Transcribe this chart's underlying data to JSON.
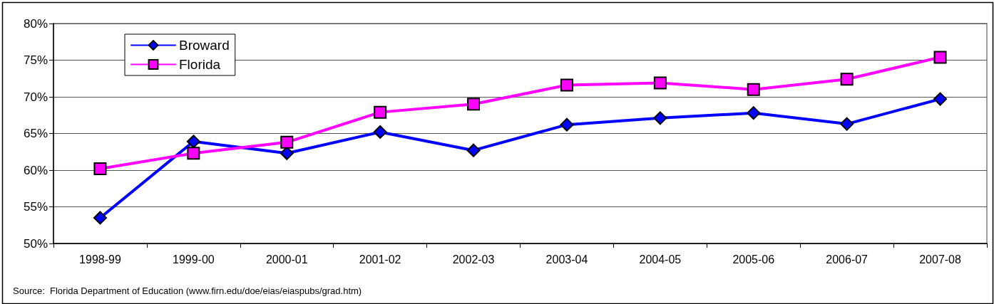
{
  "chart_data": {
    "type": "line",
    "categories": [
      "1998-99",
      "1999-00",
      "2000-01",
      "2001-02",
      "2002-03",
      "2003-04",
      "2004-05",
      "2005-06",
      "2006-07",
      "2007-08"
    ],
    "series": [
      {
        "name": "Broward",
        "color": "#0000ff",
        "marker": "diamond",
        "values": [
          53.5,
          63.9,
          62.3,
          65.2,
          62.7,
          66.2,
          67.1,
          67.8,
          66.3,
          69.7
        ]
      },
      {
        "name": "Florida",
        "color": "#ff00ff",
        "marker": "square",
        "values": [
          60.2,
          62.3,
          63.8,
          67.9,
          69.0,
          71.6,
          71.9,
          71.0,
          72.4,
          75.4
        ]
      }
    ],
    "ylim": [
      50,
      80
    ],
    "yticks": [
      {
        "value": 50,
        "label": "50%"
      },
      {
        "value": 55,
        "label": "55%"
      },
      {
        "value": 60,
        "label": "60%"
      },
      {
        "value": 65,
        "label": "65%"
      },
      {
        "value": 70,
        "label": "70%"
      },
      {
        "value": 75,
        "label": "75%"
      },
      {
        "value": 80,
        "label": "80%"
      }
    ],
    "grid": "y",
    "legend": "top left",
    "line_style": "solid",
    "annotations": [
      "Source:  Florida Department of Education (www.firn.edu/doe/eias/eiaspubs/grad.htm)"
    ]
  }
}
